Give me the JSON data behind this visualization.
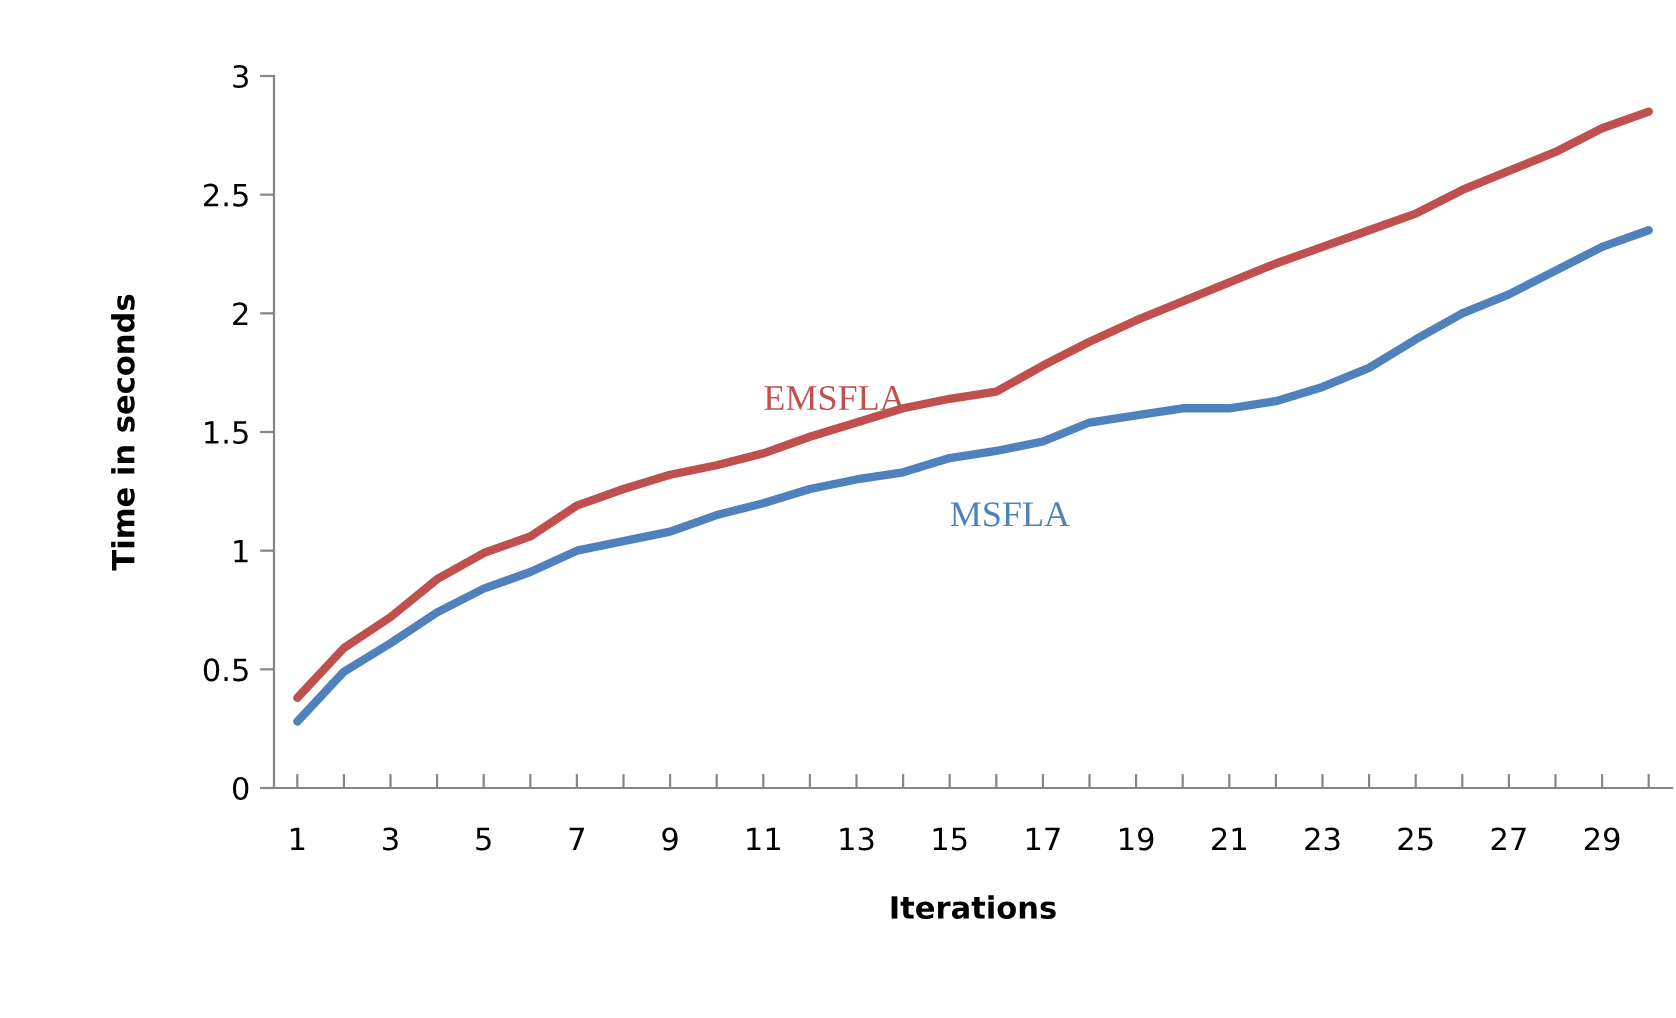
{
  "chart_data": {
    "type": "line",
    "xlabel": "Iterations",
    "ylabel": "Time in seconds",
    "categories": [
      "1",
      null,
      "3",
      null,
      "5",
      null,
      "7",
      null,
      "9",
      null,
      "11",
      null,
      "13",
      null,
      "15",
      null,
      "17",
      null,
      "19",
      null,
      "21",
      null,
      "23",
      null,
      "25",
      null,
      "27",
      null,
      "29",
      null
    ],
    "series": [
      {
        "name": "EMSFLA",
        "color": "#c0504d",
        "values": [
          0.38,
          0.59,
          0.72,
          0.88,
          0.99,
          1.06,
          1.19,
          1.26,
          1.32,
          1.36,
          1.41,
          1.48,
          1.54,
          1.6,
          1.64,
          1.67,
          1.78,
          1.88,
          1.97,
          2.05,
          2.13,
          2.21,
          2.28,
          2.35,
          2.42,
          2.52,
          2.6,
          2.68,
          2.78,
          2.85
        ]
      },
      {
        "name": "MSFLA",
        "color": "#4f81bd",
        "values": [
          0.28,
          0.49,
          0.61,
          0.74,
          0.84,
          0.91,
          1.0,
          1.04,
          1.08,
          1.15,
          1.2,
          1.26,
          1.3,
          1.33,
          1.39,
          1.42,
          1.46,
          1.54,
          1.57,
          1.6,
          1.6,
          1.63,
          1.69,
          1.77,
          1.89,
          2.0,
          2.08,
          2.18,
          2.28,
          2.35
        ]
      }
    ],
    "ylim": [
      0,
      3
    ],
    "yticks": [
      0,
      0.5,
      1,
      1.5,
      2,
      2.5,
      3
    ],
    "grid": false,
    "legend": false,
    "marker": "none",
    "line_style": "solid"
  }
}
